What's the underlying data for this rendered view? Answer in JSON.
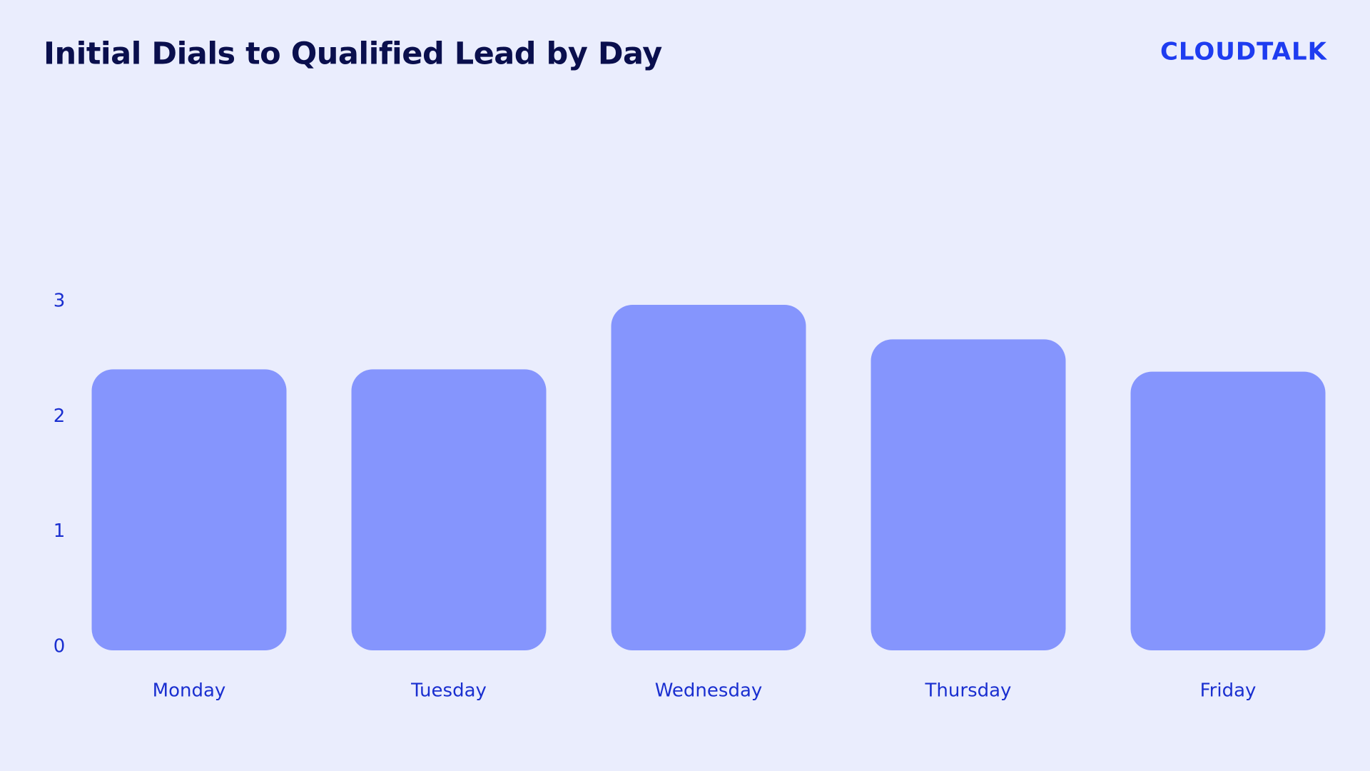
{
  "logo": "CLOUDTALK",
  "chart_data": {
    "type": "bar",
    "title": "Initial Dials to Qualified Lead by Day",
    "categories": [
      "Monday",
      "Tuesday",
      "Wednesday",
      "Thursday",
      "Friday"
    ],
    "values": [
      2.44,
      2.44,
      3.0,
      2.7,
      2.42
    ],
    "color": "#8595fd",
    "ylim": [
      0,
      3
    ],
    "yticks": [
      0,
      1,
      2,
      3
    ],
    "grid": false
  }
}
